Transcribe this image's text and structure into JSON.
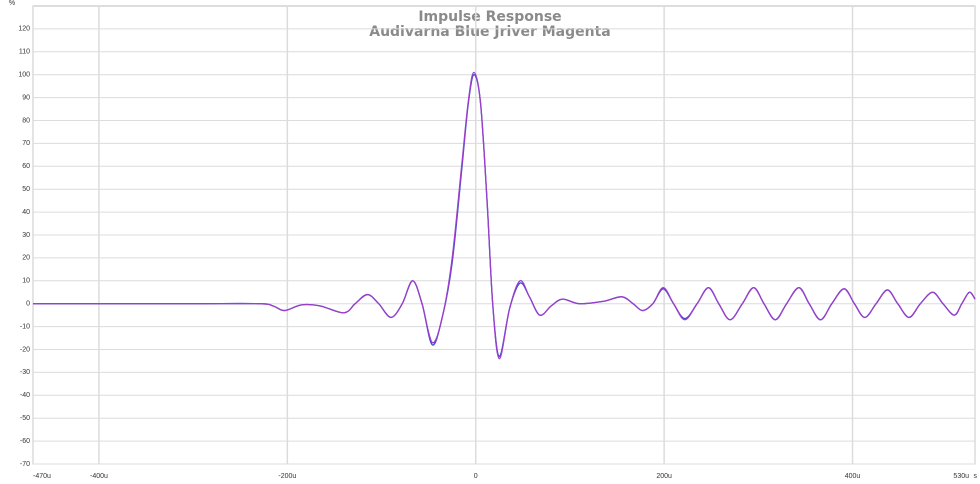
{
  "chart_data": {
    "type": "line",
    "title": "Impulse Response",
    "subtitle": "Audivarna Blue Jriver Magenta",
    "y_unit": "%",
    "x_unit": "s",
    "x": [
      -470,
      -400,
      -300,
      -230,
      -215,
      -203,
      -185,
      -165,
      -140,
      -128,
      -115,
      -103,
      -90,
      -78,
      -67,
      -57,
      -46,
      -35,
      -25,
      -15,
      -8,
      -2,
      5,
      12,
      18,
      25,
      36,
      47,
      57,
      68,
      80,
      92,
      110,
      135,
      155,
      167,
      177,
      188,
      199,
      210,
      222,
      235,
      247,
      258,
      270,
      283,
      295,
      306,
      318,
      330,
      343,
      354,
      366,
      378,
      391,
      402,
      413,
      425,
      437,
      448,
      460,
      472,
      485,
      496,
      508,
      516,
      524,
      530
    ],
    "series": [
      {
        "name": "Blue",
        "color": "#3a48d2",
        "values": [
          0,
          0,
          0,
          0,
          -1,
          -3,
          -0.5,
          -1,
          -4,
          0,
          4,
          0,
          -6,
          0,
          10,
          0,
          -18,
          -5,
          18,
          58,
          87,
          100,
          88,
          45,
          0,
          -23,
          -2,
          9,
          3,
          -5,
          -1,
          2,
          0,
          1,
          3,
          0,
          -3,
          0,
          6.5,
          0,
          -6.5,
          0,
          7,
          0,
          -7,
          0,
          7,
          0,
          -7,
          0,
          7,
          0,
          -7,
          0,
          6.5,
          0,
          -6,
          0,
          6,
          0,
          -6,
          0,
          5,
          0,
          -5,
          0,
          5,
          2
        ]
      },
      {
        "name": "Magenta",
        "color": "#9a3fc9",
        "values": [
          0,
          0,
          0,
          0,
          -1,
          -3,
          -0.5,
          -1,
          -4,
          0,
          4,
          0,
          -6,
          0,
          10,
          0,
          -17,
          -5,
          20,
          60,
          88,
          101,
          88,
          45,
          0,
          -24,
          -2,
          10,
          3,
          -5,
          -1,
          2,
          0,
          1,
          3,
          0,
          -3,
          0,
          7,
          0,
          -7,
          0,
          7,
          0,
          -7,
          0,
          7,
          0,
          -7,
          0,
          7,
          0,
          -7,
          0,
          6.5,
          0,
          -6,
          0,
          6,
          0,
          -6,
          0,
          5,
          0,
          -5,
          0,
          5,
          2
        ]
      }
    ],
    "xlim": [
      -470,
      530
    ],
    "ylim": [
      -70,
      130
    ],
    "xticks": [
      {
        "value": -470,
        "label": "-470u"
      },
      {
        "value": -400,
        "label": "-400u"
      },
      {
        "value": -200,
        "label": "-200u"
      },
      0,
      {
        "value": 200,
        "label": "200u"
      },
      {
        "value": 400,
        "label": "400u"
      },
      {
        "value": 530,
        "label": "530u"
      }
    ],
    "yticks": [
      -70,
      -60,
      -50,
      -40,
      -30,
      -20,
      -10,
      0,
      10,
      20,
      30,
      40,
      50,
      60,
      70,
      80,
      90,
      100,
      110,
      120
    ],
    "grid": true
  }
}
